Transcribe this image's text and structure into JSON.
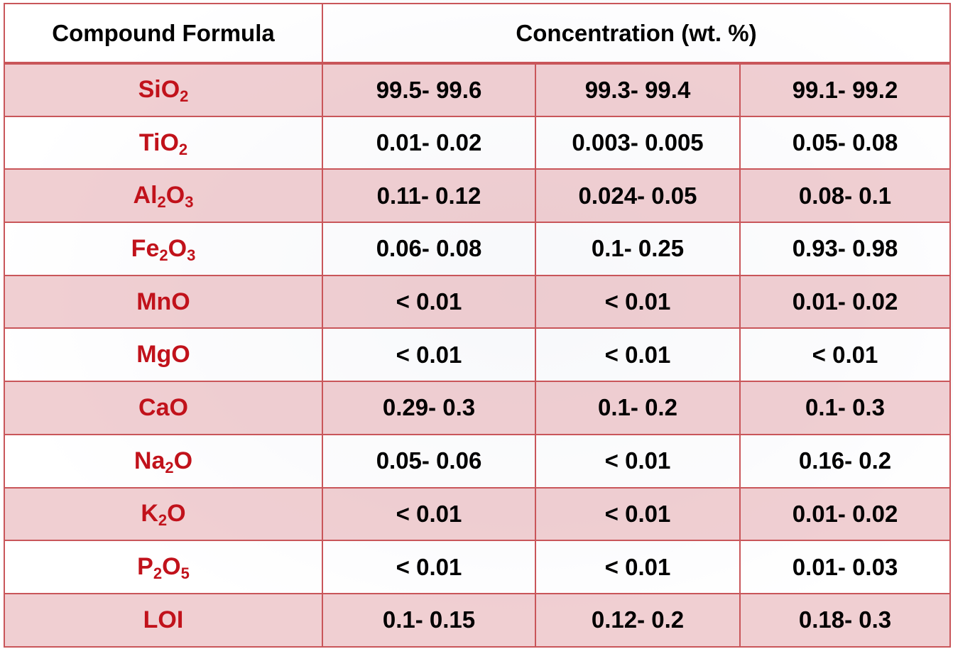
{
  "header": {
    "col1": "Compound Formula",
    "col2": "Concentration (wt. %)"
  },
  "rows": [
    {
      "formula": [
        [
          "Si",
          ""
        ],
        [
          "O",
          "2"
        ]
      ],
      "values": [
        "99.5- 99.6",
        "99.3- 99.4",
        "99.1- 99.2"
      ]
    },
    {
      "formula": [
        [
          "Ti",
          ""
        ],
        [
          "O",
          "2"
        ]
      ],
      "values": [
        "0.01- 0.02",
        "0.003- 0.005",
        "0.05- 0.08"
      ]
    },
    {
      "formula": [
        [
          "Al",
          "2"
        ],
        [
          "O",
          "3"
        ]
      ],
      "values": [
        "0.11- 0.12",
        "0.024- 0.05",
        "0.08- 0.1"
      ]
    },
    {
      "formula": [
        [
          "Fe",
          "2"
        ],
        [
          "O",
          "3"
        ]
      ],
      "values": [
        "0.06- 0.08",
        "0.1- 0.25",
        "0.93- 0.98"
      ]
    },
    {
      "formula": [
        [
          "MnO",
          ""
        ]
      ],
      "values": [
        "< 0.01",
        "< 0.01",
        "0.01- 0.02"
      ]
    },
    {
      "formula": [
        [
          "MgO",
          ""
        ]
      ],
      "values": [
        "< 0.01",
        "< 0.01",
        "< 0.01"
      ]
    },
    {
      "formula": [
        [
          "CaO",
          ""
        ]
      ],
      "values": [
        "0.29- 0.3",
        "0.1- 0.2",
        "0.1- 0.3"
      ]
    },
    {
      "formula": [
        [
          "Na",
          "2"
        ],
        [
          "O",
          ""
        ]
      ],
      "values": [
        "0.05- 0.06",
        "< 0.01",
        "0.16- 0.2"
      ]
    },
    {
      "formula": [
        [
          "K",
          "2"
        ],
        [
          "O",
          ""
        ]
      ],
      "values": [
        "< 0.01",
        "< 0.01",
        "0.01- 0.02"
      ]
    },
    {
      "formula": [
        [
          "P",
          "2"
        ],
        [
          "O",
          "5"
        ]
      ],
      "values": [
        "< 0.01",
        "< 0.01",
        "0.01- 0.03"
      ]
    },
    {
      "formula": [
        [
          "LOI",
          ""
        ]
      ],
      "values": [
        "0.1- 0.15",
        "0.12- 0.2",
        "0.18- 0.3"
      ]
    }
  ],
  "colors": {
    "formula_text": "#c1121b",
    "pink_row": "#ecc2c5",
    "border": "#c9565a"
  }
}
